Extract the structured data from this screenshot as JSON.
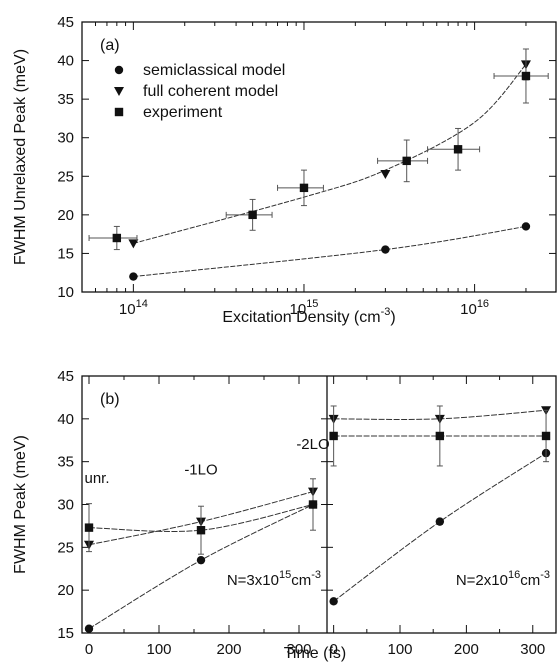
{
  "chart_data": [
    {
      "panel": "(a)",
      "type": "scatter",
      "xscale": "log",
      "xlabel": "Excitation Density (cm",
      "xlabel_sup": "-3",
      "xlabel_close": ")",
      "ylabel": "FWHM Unrelaxed Peak (meV)",
      "xlim": [
        50000000000000.0,
        3e+16
      ],
      "ylim": [
        10,
        45
      ],
      "x_ticks": [
        {
          "value": 100000000000000.0,
          "base": "10",
          "exp": "14"
        },
        {
          "value": 1000000000000000.0,
          "base": "10",
          "exp": "15"
        },
        {
          "value": 1e+16,
          "base": "10",
          "exp": "16"
        }
      ],
      "y_ticks": [
        10,
        15,
        20,
        25,
        30,
        35,
        40,
        45
      ],
      "series": [
        {
          "name": "semiclassical model",
          "marker": "circle",
          "x": [
            100000000000000.0,
            3000000000000000.0,
            2e+16
          ],
          "y": [
            12,
            15.5,
            18.5
          ]
        },
        {
          "name": "full coherent model",
          "marker": "triangle",
          "x": [
            100000000000000.0,
            3000000000000000.0,
            2e+16
          ],
          "y": [
            16.3,
            25.3,
            39.5
          ],
          "yerr": [
            0,
            0,
            2
          ]
        },
        {
          "name": "experiment",
          "marker": "square",
          "x": [
            80000000000000.0,
            500000000000000.0,
            1000000000000000.0,
            4000000000000000.0,
            8000000000000000.0,
            2e+16
          ],
          "y": [
            17,
            20,
            23.5,
            27,
            28.5,
            38
          ],
          "xerr_low": [
            25000000000000.0,
            150000000000000.0,
            300000000000000.0,
            1300000000000000.0,
            2700000000000000.0,
            7000000000000000.0
          ],
          "xerr_high": [
            25000000000000.0,
            150000000000000.0,
            300000000000000.0,
            1300000000000000.0,
            2700000000000000.0,
            7000000000000000.0
          ],
          "yerr": [
            1.5,
            2,
            2.3,
            2.7,
            2.7,
            3.5
          ]
        }
      ],
      "fit_lines": [
        {
          "of": "semiclassical model",
          "x": [
            100000000000000.0,
            3000000000000000.0,
            2e+16
          ],
          "y": [
            12,
            15.5,
            18.5
          ]
        },
        {
          "of": "full coherent model",
          "x": [
            100000000000000.0,
            1000000000000000.0,
            3000000000000000.0,
            1e+16,
            2e+16
          ],
          "y": [
            16.3,
            22.3,
            25.8,
            32,
            39.5
          ]
        }
      ],
      "legend_position": "top-left"
    },
    {
      "panel": "(b)",
      "type": "scatter",
      "ylabel": "FWHM Peak (meV)",
      "xlabel": "Time (fs)",
      "ylim": [
        15,
        45
      ],
      "y_ticks": [
        15,
        20,
        25,
        30,
        35,
        40,
        45
      ],
      "x_ticks": [
        0,
        100,
        200,
        300
      ],
      "subpanels": [
        {
          "density_label": "N=3x10",
          "density_exp": "15",
          "density_unit": "cm",
          "density_unit_exp": "-3",
          "xlim": [
            -10,
            340
          ],
          "annotations": [
            {
              "text": "unr.",
              "x": 0,
              "y": 32.5
            },
            {
              "text": "-1LO",
              "x": 160,
              "y": 33.5
            },
            {
              "text": "-2LO",
              "x": 320,
              "y": 36.5
            }
          ],
          "series": [
            {
              "name": "semiclassical model",
              "marker": "circle",
              "x": [
                0,
                160,
                320
              ],
              "y": [
                15.5,
                23.5,
                30
              ]
            },
            {
              "name": "full coherent model",
              "marker": "triangle",
              "x": [
                0,
                160,
                320
              ],
              "y": [
                25.3,
                28,
                31.5
              ]
            },
            {
              "name": "experiment",
              "marker": "square",
              "x": [
                0,
                160,
                320
              ],
              "y": [
                27.3,
                27,
                30
              ],
              "yerr": [
                2.8,
                2.8,
                3
              ]
            }
          ]
        },
        {
          "density_label": "N=2x10",
          "density_exp": "16",
          "density_unit": "cm",
          "density_unit_exp": "-3",
          "xlim": [
            -10,
            335
          ],
          "series": [
            {
              "name": "semiclassical model",
              "marker": "circle",
              "x": [
                0,
                160,
                320
              ],
              "y": [
                18.7,
                28,
                36
              ]
            },
            {
              "name": "full coherent model",
              "marker": "triangle",
              "x": [
                0,
                160,
                320
              ],
              "y": [
                40,
                40,
                41
              ]
            },
            {
              "name": "experiment",
              "marker": "square",
              "x": [
                0,
                160,
                320
              ],
              "y": [
                38,
                38,
                38
              ],
              "yerr": [
                3.5,
                3.5,
                3
              ]
            }
          ]
        }
      ]
    }
  ]
}
